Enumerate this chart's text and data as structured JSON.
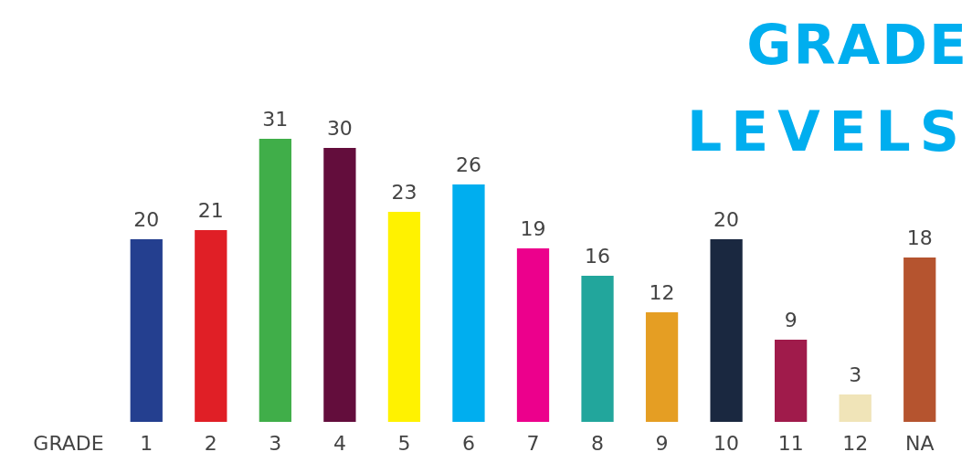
{
  "chart_data": {
    "type": "bar",
    "title": "GRADE LEVELS",
    "xlabel": "GRADE",
    "categories": [
      "1",
      "2",
      "3",
      "4",
      "5",
      "6",
      "7",
      "8",
      "9",
      "10",
      "11",
      "12",
      "NA"
    ],
    "values": [
      20,
      21,
      31,
      30,
      23,
      26,
      19,
      16,
      12,
      20,
      9,
      3,
      18
    ],
    "colors": [
      "#243f8f",
      "#e01f26",
      "#40ae49",
      "#630d3c",
      "#fff200",
      "#00aeef",
      "#ec008c",
      "#22a69c",
      "#e59e23",
      "#1a2840",
      "#a01b4b",
      "#f0e4b8",
      "#b5542f"
    ],
    "data_labels": true
  }
}
